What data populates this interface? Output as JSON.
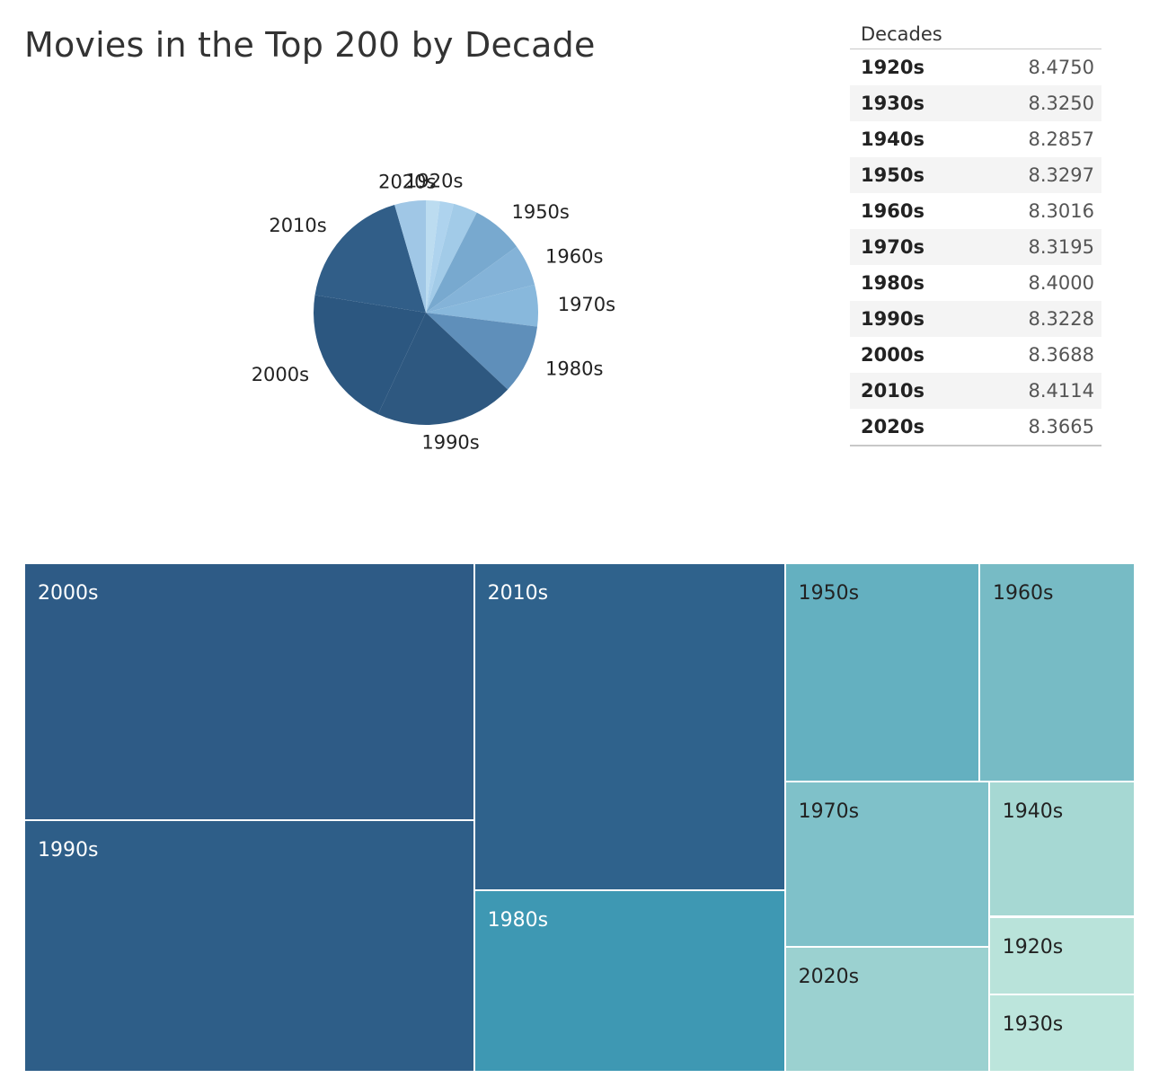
{
  "title": "Movies in the Top 200 by Decade",
  "table": {
    "header": "Decades",
    "rows": [
      {
        "decade": "1920s",
        "value": "8.4750"
      },
      {
        "decade": "1930s",
        "value": "8.3250"
      },
      {
        "decade": "1940s",
        "value": "8.2857"
      },
      {
        "decade": "1950s",
        "value": "8.3297"
      },
      {
        "decade": "1960s",
        "value": "8.3016"
      },
      {
        "decade": "1970s",
        "value": "8.3195"
      },
      {
        "decade": "1980s",
        "value": "8.4000"
      },
      {
        "decade": "1990s",
        "value": "8.3228"
      },
      {
        "decade": "2000s",
        "value": "8.3688"
      },
      {
        "decade": "2010s",
        "value": "8.4114"
      },
      {
        "decade": "2020s",
        "value": "8.3665"
      }
    ]
  },
  "chart_data": [
    {
      "type": "pie",
      "title": "",
      "categories": [
        "1920s",
        "1930s",
        "1940s",
        "1950s",
        "1960s",
        "1970s",
        "1980s",
        "1990s",
        "2000s",
        "2010s",
        "2020s"
      ],
      "values": [
        4,
        4,
        7,
        15,
        12,
        12,
        20,
        40,
        41,
        36,
        9
      ],
      "colors": [
        "#bcdcf0",
        "#aed3ee",
        "#a2cbe8",
        "#78a9cf",
        "#84b3d8",
        "#88b8dc",
        "#5f8fba",
        "#2e5880",
        "#2c5780",
        "#315e88",
        "#a0c7e6"
      ]
    },
    {
      "type": "treemap",
      "title": "",
      "categories": [
        "2000s",
        "1990s",
        "2010s",
        "1980s",
        "1950s",
        "1960s",
        "1970s",
        "2020s",
        "1940s",
        "1920s",
        "1930s"
      ],
      "values": [
        41,
        40,
        36,
        20,
        15,
        12,
        12,
        9,
        7,
        4,
        4
      ],
      "colors": [
        "#2e5b86",
        "#2e5e88",
        "#2f628c",
        "#3e98b3",
        "#64b0c0",
        "#77bbc5",
        "#7fc1c9",
        "#9bd1d0",
        "#a6d8d3",
        "#b9e3da",
        "#bce5dc"
      ],
      "text_colors": [
        "#ffffff",
        "#ffffff",
        "#ffffff",
        "#ffffff",
        "#222222",
        "#222222",
        "#222222",
        "#222222",
        "#222222",
        "#222222",
        "#222222"
      ]
    }
  ]
}
